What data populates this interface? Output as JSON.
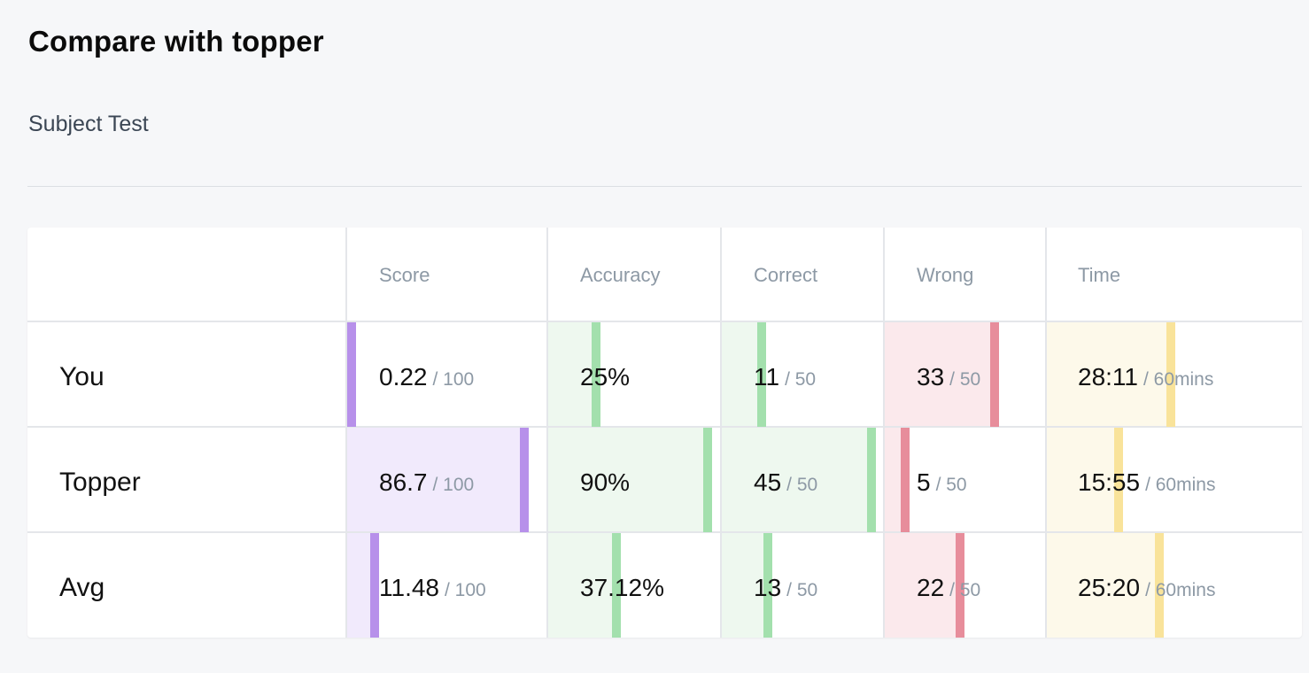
{
  "page": {
    "title": "Compare with topper",
    "subtitle": "Subject Test"
  },
  "table": {
    "columns": [
      "Score",
      "Accuracy",
      "Correct",
      "Wrong",
      "Time"
    ],
    "rows": [
      {
        "label": "You",
        "score": {
          "value": "0.22",
          "suffix": "/ 100",
          "fraction": 0.0022
        },
        "accuracy": {
          "value": "25%",
          "fraction": 0.25
        },
        "correct": {
          "value": "11",
          "suffix": "/ 50",
          "fraction": 0.22
        },
        "wrong": {
          "value": "33",
          "suffix": "/ 50",
          "fraction": 0.66
        },
        "time": {
          "value": "28:11",
          "suffix": "/ 60mins",
          "fraction": 0.4697
        }
      },
      {
        "label": "Topper",
        "score": {
          "value": "86.7",
          "suffix": "/ 100",
          "fraction": 0.867
        },
        "accuracy": {
          "value": "90%",
          "fraction": 0.9
        },
        "correct": {
          "value": "45",
          "suffix": "/ 50",
          "fraction": 0.9
        },
        "wrong": {
          "value": "5",
          "suffix": "/ 50",
          "fraction": 0.1
        },
        "time": {
          "value": "15:55",
          "suffix": "/ 60mins",
          "fraction": 0.2653
        }
      },
      {
        "label": "Avg",
        "score": {
          "value": "11.48",
          "suffix": "/ 100",
          "fraction": 0.1148
        },
        "accuracy": {
          "value": "37.12%",
          "fraction": 0.3712
        },
        "correct": {
          "value": "13",
          "suffix": "/ 50",
          "fraction": 0.26
        },
        "wrong": {
          "value": "22",
          "suffix": "/ 50",
          "fraction": 0.44
        },
        "time": {
          "value": "25:20",
          "suffix": "/ 60mins",
          "fraction": 0.4222
        }
      }
    ]
  },
  "colors": {
    "score": {
      "fill": "#f1eafc",
      "marker": "#b790ea"
    },
    "accuracy": {
      "fill": "#eef8ef",
      "marker": "#a3e0ad"
    },
    "correct": {
      "fill": "#eef8ef",
      "marker": "#a3e0ad"
    },
    "wrong": {
      "fill": "#fbe9ec",
      "marker": "#e78d9b"
    },
    "time": {
      "fill": "#fdf9ea",
      "marker": "#f9e39a"
    }
  }
}
